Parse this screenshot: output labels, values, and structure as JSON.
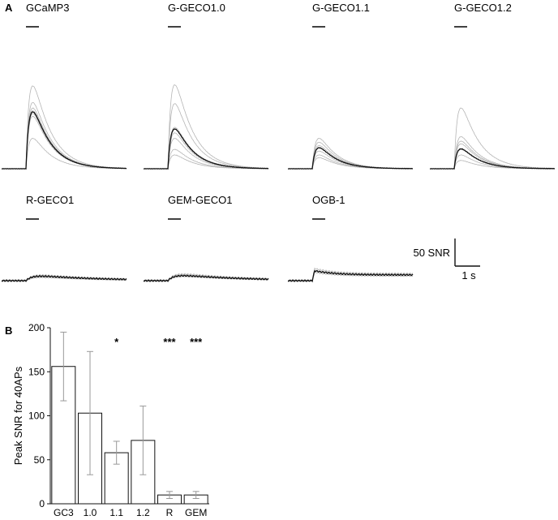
{
  "panels": {
    "a": "A",
    "b": "B"
  },
  "scale_bar": {
    "y_label": "50 SNR",
    "x_label": "1 s"
  },
  "chart_data": [
    {
      "type": "line",
      "panel": "A",
      "traces": [
        {
          "name": "GCaMP3",
          "mean_peak": 103,
          "individual_peaks": [
            150,
            120,
            110,
            105,
            100,
            95,
            55
          ]
        },
        {
          "name": "G-GECO1.0",
          "mean_peak": 72,
          "individual_peaks": [
            152,
            118,
            75,
            65,
            55,
            35,
            25
          ]
        },
        {
          "name": "G-GECO1.1",
          "mean_peak": 38,
          "individual_peaks": [
            55,
            48,
            42,
            38,
            32,
            25,
            20
          ]
        },
        {
          "name": "G-GECO1.2",
          "mean_peak": 36,
          "individual_peaks": [
            110,
            58,
            50,
            45,
            35,
            25,
            15
          ]
        },
        {
          "name": "R-GECO1",
          "mean_peak": 8,
          "individual_peaks": [
            10,
            8,
            6
          ]
        },
        {
          "name": "GEM-GECO1",
          "mean_peak": 9,
          "individual_peaks": [
            12,
            10,
            8
          ]
        },
        {
          "name": "OGB-1",
          "mean_peak": 18,
          "individual_peaks": [
            22,
            18,
            15
          ]
        }
      ]
    },
    {
      "type": "bar",
      "panel": "B",
      "categories": [
        "GC3",
        "1.0",
        "1.1",
        "1.2",
        "R",
        "GEM"
      ],
      "values": [
        156,
        103,
        58,
        72,
        10,
        10
      ],
      "error": [
        39,
        70,
        13,
        39,
        4,
        4
      ],
      "significance": [
        "",
        "",
        "*",
        "",
        "***",
        "***"
      ],
      "ylabel": "Peak SNR for 40APs",
      "ylim": [
        0,
        200
      ],
      "yticks": [
        0,
        50,
        100,
        150,
        200
      ]
    }
  ]
}
